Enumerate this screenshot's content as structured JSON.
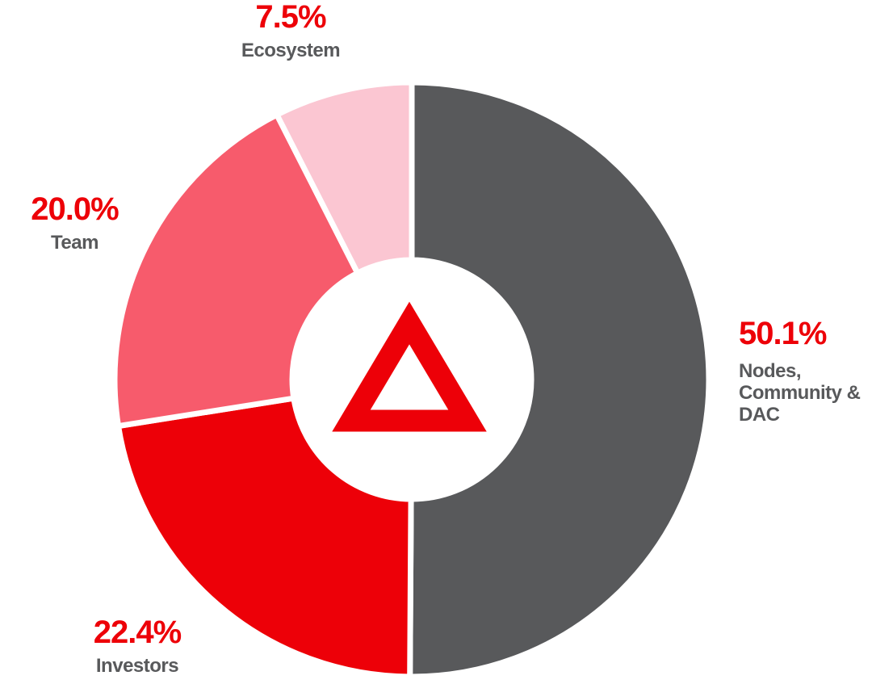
{
  "theme": {
    "percent_color": "#ED0008",
    "name_color": "#58595B",
    "background": "#FFFFFF",
    "gap_color": "#FFFFFF",
    "logo_color": "#ED0008"
  },
  "chart_data": {
    "type": "pie",
    "subtype": "donut",
    "title": "",
    "total": 100,
    "start_angle_deg": 0,
    "direction": "clockwise",
    "legend_position": "around-chart",
    "center_logo": "bat-triangle-logo",
    "slices": [
      {
        "label": "Nodes, Community & DAC",
        "label_lines": [
          "Nodes,",
          "Community &",
          "DAC"
        ],
        "value": 50.1,
        "pct_label": "50.1%",
        "color": "#58595B"
      },
      {
        "label": "Investors",
        "label_lines": [
          "Investors"
        ],
        "value": 22.4,
        "pct_label": "22.4%",
        "color": "#ED0008"
      },
      {
        "label": "Team",
        "label_lines": [
          "Team"
        ],
        "value": 20.0,
        "pct_label": "20.0%",
        "color": "#F75B6C"
      },
      {
        "label": "Ecosystem",
        "label_lines": [
          "Ecosystem"
        ],
        "value": 7.5,
        "pct_label": "7.5%",
        "color": "#FBC6D2"
      }
    ]
  }
}
